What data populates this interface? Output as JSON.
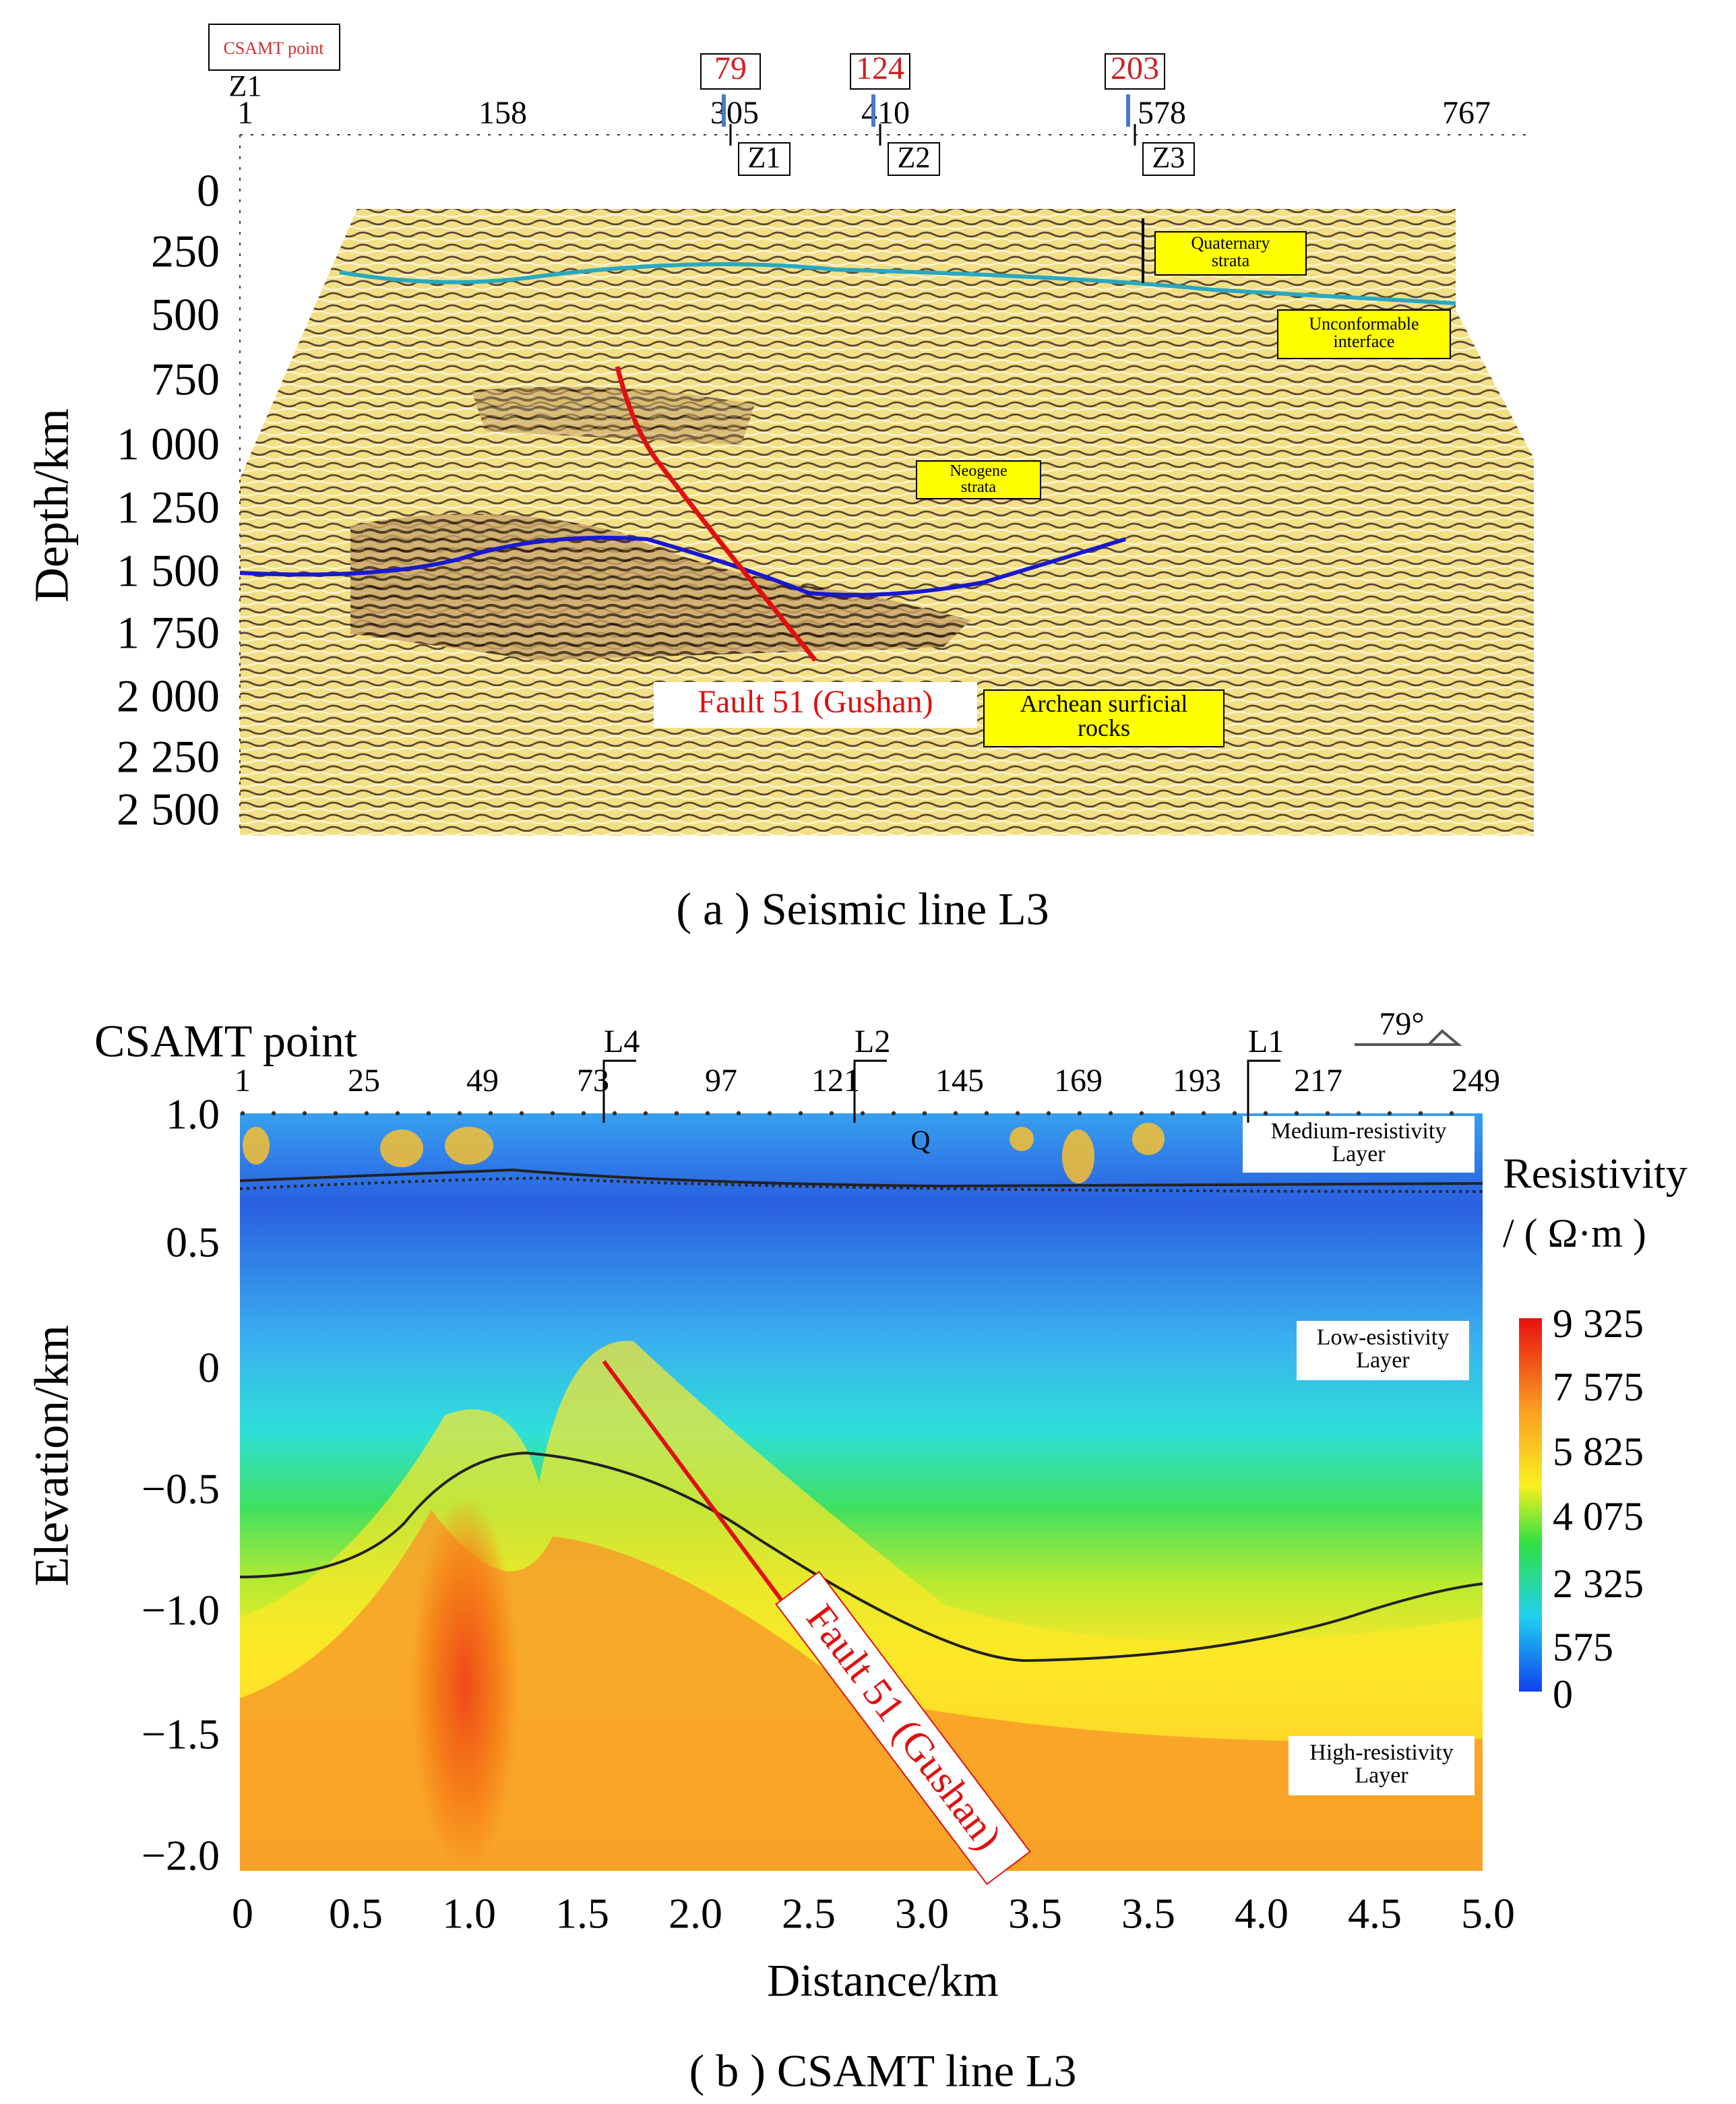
{
  "panel_a": {
    "legend": "CSAMT point",
    "start_label": "Z1",
    "top_ticks": [
      "1",
      "158",
      "305",
      "410",
      "578",
      "767"
    ],
    "points": [
      {
        "label": "79",
        "well": "Z1"
      },
      {
        "label": "124",
        "well": "Z2"
      },
      {
        "label": "203",
        "well": "Z3"
      }
    ],
    "y_axis_label": "Depth/km",
    "yticks": [
      "0",
      "250",
      "500",
      "750",
      "1 000",
      "1 250",
      "1 500",
      "1 750",
      "2 000",
      "2 250",
      "2 500"
    ],
    "annotations": {
      "quaternary": "Quaternary strata",
      "unconformable": "Unconformable interface",
      "neogene": "Neogene strata",
      "archean": "Archean surficial rocks",
      "fault": "Fault 51 (Gushan)"
    },
    "caption": "( a ) Seismic line L3"
  },
  "panel_b": {
    "top_label": "CSAMT point",
    "stations": [
      "1",
      "25",
      "49",
      "73",
      "97",
      "121",
      "145",
      "169",
      "193",
      "217",
      "249"
    ],
    "lines": [
      "L4",
      "L2",
      "L1"
    ],
    "angle": "79°",
    "q": "Q",
    "y_axis_label": "Elevation/km",
    "yticks": [
      "1.0",
      "0.5",
      "0",
      "−0.5",
      "−1.0",
      "−1.5",
      "−2.0"
    ],
    "x_axis_label": "Distance/km",
    "xticks": [
      "0",
      "0.5",
      "1.0",
      "1.5",
      "2.0",
      "2.5",
      "3.0",
      "3.5",
      "3.5",
      "4.0",
      "4.5",
      "5.0"
    ],
    "layers": {
      "medium": "Medium-resistivity Layer",
      "low": "Low-esistivity Layer",
      "high": "High-resistivity Layer"
    },
    "colorbar_title": "Resistivity",
    "colorbar_unit": "/ ( Ω·m )",
    "colorbar_ticks": [
      "9 325",
      "7 575",
      "5 825",
      "4 075",
      "2 325",
      "575",
      "0"
    ],
    "fault": "Fault 51 (Gushan)",
    "caption": "( b ) CSAMT line L3"
  }
}
